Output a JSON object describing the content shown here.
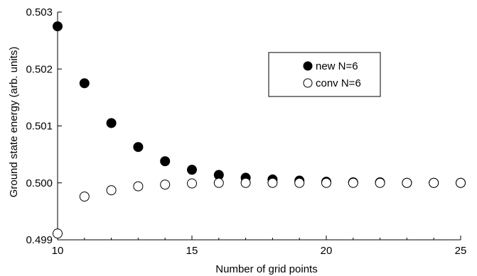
{
  "chart_data": {
    "type": "scatter",
    "xlabel": "Number of grid points",
    "ylabel": "Ground state energy (arb. units)",
    "xlim": [
      10,
      25
    ],
    "ylim": [
      0.499,
      0.503
    ],
    "x_ticks": [
      10,
      15,
      20,
      25
    ],
    "x_tick_labels": [
      "10",
      "15",
      "20",
      "25"
    ],
    "y_ticks": [
      0.499,
      0.5,
      0.501,
      0.502,
      0.503
    ],
    "y_tick_labels": [
      "0.499",
      "0.500",
      "0.501",
      "0.502",
      "0.503"
    ],
    "grid": false,
    "legend_position": "upper-right",
    "series": [
      {
        "name": "new N=6",
        "marker": "filled-circle",
        "color": "#000000",
        "x": [
          10,
          11,
          12,
          13,
          14,
          15,
          16,
          17,
          18,
          19,
          20,
          21,
          22,
          23,
          24,
          25
        ],
        "y": [
          0.50275,
          0.50175,
          0.50105,
          0.50063,
          0.50038,
          0.50023,
          0.50014,
          0.50009,
          0.50006,
          0.50004,
          0.50002,
          0.50001,
          0.50001,
          0.5,
          0.5,
          0.5
        ]
      },
      {
        "name": "conv N=6",
        "marker": "open-circle",
        "color": "#000000",
        "x": [
          10,
          11,
          12,
          13,
          14,
          15,
          16,
          17,
          18,
          19,
          20,
          21,
          22,
          23,
          24,
          25
        ],
        "y": [
          0.49911,
          0.49976,
          0.49987,
          0.49994,
          0.49997,
          0.49999,
          0.5,
          0.5,
          0.5,
          0.5,
          0.5,
          0.5,
          0.5,
          0.5,
          0.5,
          0.5
        ]
      }
    ]
  }
}
